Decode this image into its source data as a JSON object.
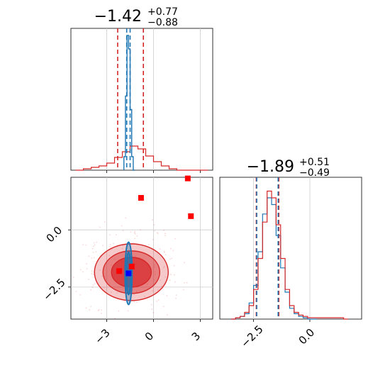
{
  "colors": {
    "red": "#d62728",
    "blue": "#1f77b4",
    "marker_red": "#ff0000",
    "marker_blue": "#0000ff",
    "grid": "#cccccc"
  },
  "chart_data": {
    "type": "corner",
    "parameters": [
      {
        "title_main": "−1.42",
        "title_sup": "+0.77",
        "title_sub": "−0.88",
        "median": -1.42,
        "quantiles": {
          "red": [
            -2.3,
            -0.65
          ],
          "blue": [
            -1.72,
            -1.5
          ]
        },
        "xlim": [
          -5.3,
          3.8
        ]
      },
      {
        "title_main": "−1.89",
        "title_sup": "+0.51",
        "title_sub": "−0.49",
        "median": -1.89,
        "quantiles": {
          "red": [
            -2.38,
            -1.38
          ],
          "blue": [
            -2.36,
            -1.41
          ]
        },
        "xlim": [
          -4.0,
          2.3
        ]
      }
    ],
    "panels": {
      "hist_top": {
        "xlim": [
          -5.3,
          3.8
        ],
        "xticks": [
          -3,
          0,
          3
        ],
        "grid": true,
        "red_hist": {
          "bins": [
            -5.0,
            -4.5,
            -4.0,
            -3.5,
            -3.0,
            -2.5,
            -2.0,
            -1.5,
            -1.0,
            -0.5,
            0.0,
            0.5,
            1.0,
            1.5,
            2.0,
            2.5,
            3.0
          ],
          "values": [
            0.0,
            0.01,
            0.02,
            0.03,
            0.05,
            0.09,
            0.13,
            0.17,
            0.15,
            0.1,
            0.06,
            0.03,
            0.01,
            0.0,
            0.0,
            0.0,
            0.0
          ]
        },
        "blue_hist": {
          "bins": [
            -1.9,
            -1.8,
            -1.7,
            -1.6,
            -1.5,
            -1.4,
            -1.3
          ],
          "values": [
            0.1,
            0.55,
            1.0,
            0.9,
            0.45,
            0.1,
            0.0
          ]
        }
      },
      "scatter": {
        "xlim": [
          -5.3,
          3.8
        ],
        "ylim": [
          -3.9,
          2.3
        ],
        "xticks": [
          -3,
          0,
          3
        ],
        "yticks": [
          0.0,
          -2.5
        ],
        "xtick_labels": [
          "−3",
          "0",
          "3"
        ],
        "ytick_labels": [
          "0.0",
          "−2.5"
        ],
        "grid": true,
        "red_markers": [
          {
            "x": -0.8,
            "y": 1.4
          },
          {
            "x": 2.4,
            "y": 0.6
          },
          {
            "x": 2.2,
            "y": 2.25
          },
          {
            "x": -2.2,
            "y": -1.8
          },
          {
            "x": -1.4,
            "y": -1.6
          }
        ],
        "blue_markers": [
          {
            "x": -1.6,
            "y": -1.9
          }
        ]
      },
      "hist_right": {
        "xlim": [
          -4.0,
          2.3
        ],
        "xticks": [
          -2.5,
          0.0
        ],
        "xtick_labels": [
          "−2.5",
          "0.0"
        ],
        "grid": true,
        "red_hist": {
          "bins": [
            -3.5,
            -3.3,
            -3.1,
            -2.9,
            -2.7,
            -2.5,
            -2.3,
            -2.1,
            -1.9,
            -1.7,
            -1.5,
            -1.3,
            -1.1,
            -0.9,
            -0.7,
            -0.5,
            -0.3,
            -0.1,
            0.1,
            0.5,
            1.5
          ],
          "values": [
            0.0,
            0.01,
            0.02,
            0.05,
            0.1,
            0.22,
            0.45,
            0.72,
            0.95,
            0.9,
            0.7,
            0.45,
            0.22,
            0.1,
            0.05,
            0.03,
            0.02,
            0.01,
            0.01,
            0.01,
            0.0
          ]
        },
        "blue_hist": {
          "bins": [
            -3.5,
            -3.3,
            -3.1,
            -2.9,
            -2.7,
            -2.5,
            -2.3,
            -2.1,
            -1.9,
            -1.7,
            -1.5,
            -1.3,
            -1.1,
            -0.9,
            -0.7,
            -0.5,
            -0.3,
            -0.1,
            0.1
          ],
          "values": [
            0.0,
            0.01,
            0.02,
            0.04,
            0.12,
            0.25,
            0.5,
            0.78,
            0.9,
            0.85,
            0.62,
            0.38,
            0.2,
            0.08,
            0.04,
            0.02,
            0.01,
            0.0,
            0.0
          ]
        }
      }
    }
  }
}
